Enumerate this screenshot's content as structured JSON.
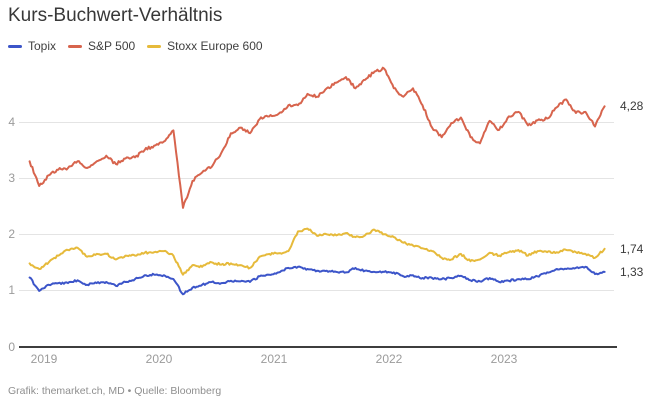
{
  "title": "Kurs-Buchwert-Verhältnis",
  "footer": "Grafik: themarket.ch, MD • Quelle: Bloomberg",
  "colors": {
    "grid": "#e4e4e4",
    "axis": "#3d3d3d",
    "tick_text": "#9b9b9b",
    "title_text": "#383838",
    "footer_text": "#8f8f8f"
  },
  "chart_data": {
    "type": "line",
    "title": "Kurs-Buchwert-Verhältnis",
    "legend_position": "top",
    "grid": "horizontal",
    "x_axis": {
      "ticks": [
        "2019",
        "2020",
        "2021",
        "2022",
        "2023"
      ],
      "start": "2018-11",
      "end": "2023-11",
      "interval": "monthly"
    },
    "y_axis": {
      "ticks": [
        "4",
        "3",
        "2",
        "1",
        "0"
      ],
      "range": [
        0,
        5
      ]
    },
    "series": [
      {
        "name": "Topix",
        "color": "#3c55c9",
        "end_label": "1,33",
        "end_value": 1.33,
        "values": [
          1.23,
          0.99,
          1.1,
          1.13,
          1.13,
          1.18,
          1.1,
          1.13,
          1.15,
          1.08,
          1.15,
          1.2,
          1.27,
          1.28,
          1.27,
          1.2,
          0.93,
          1.05,
          1.1,
          1.15,
          1.13,
          1.17,
          1.16,
          1.15,
          1.25,
          1.28,
          1.32,
          1.4,
          1.42,
          1.38,
          1.35,
          1.35,
          1.33,
          1.32,
          1.4,
          1.35,
          1.33,
          1.33,
          1.32,
          1.25,
          1.27,
          1.22,
          1.22,
          1.2,
          1.22,
          1.26,
          1.18,
          1.16,
          1.22,
          1.15,
          1.17,
          1.2,
          1.2,
          1.25,
          1.32,
          1.38,
          1.38,
          1.4,
          1.42,
          1.29,
          1.33
        ]
      },
      {
        "name": "S&P 500",
        "color": "#d7644d",
        "end_label": "4,28",
        "end_value": 4.28,
        "values": [
          3.3,
          2.86,
          3.05,
          3.15,
          3.18,
          3.3,
          3.18,
          3.3,
          3.4,
          3.25,
          3.35,
          3.37,
          3.5,
          3.58,
          3.65,
          3.85,
          2.47,
          2.95,
          3.1,
          3.2,
          3.45,
          3.8,
          3.9,
          3.8,
          4.05,
          4.1,
          4.15,
          4.3,
          4.3,
          4.5,
          4.45,
          4.6,
          4.7,
          4.8,
          4.6,
          4.75,
          4.9,
          4.95,
          4.6,
          4.45,
          4.6,
          4.3,
          3.9,
          3.73,
          3.98,
          4.08,
          3.73,
          3.62,
          4.02,
          3.86,
          4.1,
          4.18,
          3.94,
          4.03,
          4.06,
          4.26,
          4.4,
          4.16,
          4.18,
          3.92,
          4.28
        ]
      },
      {
        "name": "Stoxx Europe 600",
        "color": "#e6ba3b",
        "end_label": "1,74",
        "end_value": 1.74,
        "values": [
          1.48,
          1.38,
          1.5,
          1.62,
          1.72,
          1.76,
          1.6,
          1.65,
          1.65,
          1.55,
          1.62,
          1.62,
          1.67,
          1.68,
          1.7,
          1.62,
          1.28,
          1.45,
          1.42,
          1.5,
          1.46,
          1.48,
          1.45,
          1.4,
          1.6,
          1.65,
          1.66,
          1.7,
          2.05,
          2.1,
          1.97,
          2.0,
          1.98,
          2.02,
          1.95,
          1.98,
          2.08,
          2.0,
          1.95,
          1.85,
          1.8,
          1.75,
          1.7,
          1.58,
          1.55,
          1.65,
          1.52,
          1.55,
          1.67,
          1.62,
          1.68,
          1.72,
          1.62,
          1.7,
          1.68,
          1.68,
          1.72,
          1.68,
          1.65,
          1.58,
          1.74
        ]
      }
    ]
  }
}
